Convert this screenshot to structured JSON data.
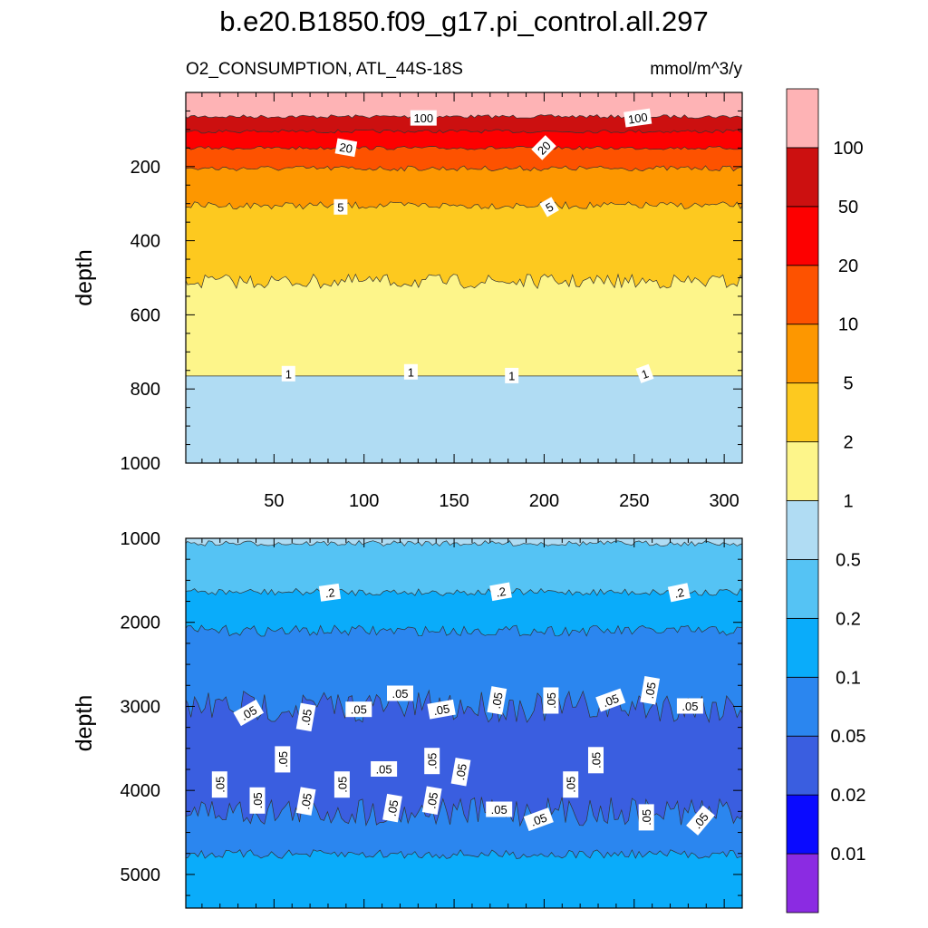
{
  "chart_data": {
    "type": "contour",
    "title": "b.e20.B1850.f09_g17.pi_control.all.297",
    "variable_label": "O2_CONSUMPTION, ATL_44S-18S",
    "units_label": "mmol/m^3/y",
    "x_range": [
      1,
      310
    ],
    "x_ticks": [
      50,
      100,
      150,
      200,
      250,
      300
    ],
    "colorbar": {
      "levels": [
        0.01,
        0.02,
        0.05,
        0.1,
        0.2,
        0.5,
        1,
        2,
        5,
        10,
        20,
        50,
        100
      ],
      "level_labels": [
        "0.01",
        "0.02",
        "0.05",
        "0.1",
        "0.2",
        "0.5",
        "1",
        "2",
        "5",
        "10",
        "20",
        "50",
        "100"
      ],
      "colors": [
        "#8b2be2",
        "#0a0aff",
        "#3a5ee0",
        "#2b86ef",
        "#0aacfa",
        "#55c3f4",
        "#b0dcf3",
        "#fdf58a",
        "#fdc91f",
        "#fd9700",
        "#fd5200",
        "#fd0000",
        "#cc1010",
        "#feb3b5"
      ]
    },
    "panels": [
      {
        "ylabel": "depth",
        "ylim": [
          1000,
          0
        ],
        "y_ticks": [
          200,
          400,
          600,
          800,
          1000
        ],
        "show_x_ticklabels": true,
        "bands": [
          {
            "from": 0,
            "to": 65,
            "color": "#feb3b5"
          },
          {
            "from": 65,
            "to": 105,
            "color": "#cc1010"
          },
          {
            "from": 105,
            "to": 150,
            "color": "#fd0000"
          },
          {
            "from": 150,
            "to": 205,
            "color": "#fd5200"
          },
          {
            "from": 205,
            "to": 305,
            "color": "#fd9700"
          },
          {
            "from": 305,
            "to": 510,
            "color": "#fdc91f"
          },
          {
            "from": 510,
            "to": 765,
            "color": "#fdf58a"
          },
          {
            "from": 765,
            "to": 1000,
            "color": "#b0dcf3"
          }
        ],
        "contour_labels": [
          {
            "text": "100",
            "x": 133,
            "y": 70
          },
          {
            "text": "100",
            "x": 252,
            "y": 70,
            "rot": -8
          },
          {
            "text": "20",
            "x": 90,
            "y": 150,
            "rot": 10
          },
          {
            "text": "20",
            "x": 200,
            "y": 150,
            "rot": -45
          },
          {
            "text": "5",
            "x": 87,
            "y": 310
          },
          {
            "text": "5",
            "x": 203,
            "y": 310,
            "rot": -30
          },
          {
            "text": "1",
            "x": 58,
            "y": 760
          },
          {
            "text": "1",
            "x": 126,
            "y": 755
          },
          {
            "text": "1",
            "x": 182,
            "y": 765
          },
          {
            "text": "1",
            "x": 256,
            "y": 760,
            "rot": -20
          }
        ]
      },
      {
        "ylabel": "depth",
        "ylim": [
          5400,
          1000
        ],
        "y_ticks": [
          1000,
          2000,
          3000,
          4000,
          5000
        ],
        "show_x_ticklabels": false,
        "bands": [
          {
            "from": 1000,
            "to": 1060,
            "color": "#b0dcf3"
          },
          {
            "from": 1060,
            "to": 1640,
            "color": "#55c3f4"
          },
          {
            "from": 1640,
            "to": 2100,
            "color": "#0aacfa"
          },
          {
            "from": 2100,
            "to": 3000,
            "color": "#2b86ef"
          },
          {
            "from": 3000,
            "to": 4250,
            "color": "#3a5ee0"
          },
          {
            "from": 4250,
            "to": 4760,
            "color": "#2b86ef"
          },
          {
            "from": 4760,
            "to": 5400,
            "color": "#0aacfa"
          }
        ],
        "contour_labels": [
          {
            "text": ".2",
            "x": 81,
            "y": 1650,
            "rot": -8
          },
          {
            "text": ".2",
            "x": 176,
            "y": 1640,
            "rot": -10
          },
          {
            "text": ".2",
            "x": 275,
            "y": 1650,
            "rot": -12
          },
          {
            "text": ".05",
            "x": 36,
            "y": 3080,
            "rot": -30
          },
          {
            "text": ".05",
            "x": 68,
            "y": 3130,
            "rot": -80
          },
          {
            "text": ".05",
            "x": 97,
            "y": 3040
          },
          {
            "text": ".05",
            "x": 120,
            "y": 2850
          },
          {
            "text": ".05",
            "x": 143,
            "y": 3040,
            "rot": -10
          },
          {
            "text": ".05",
            "x": 174,
            "y": 2930,
            "rot": -80
          },
          {
            "text": ".05",
            "x": 204,
            "y": 2930,
            "rot": -90
          },
          {
            "text": ".05",
            "x": 237,
            "y": 2930,
            "rot": -20
          },
          {
            "text": ".05",
            "x": 259,
            "y": 2810,
            "rot": -80
          },
          {
            "text": ".05",
            "x": 281,
            "y": 3000
          },
          {
            "text": ".05",
            "x": 55,
            "y": 3630,
            "rot": -90
          },
          {
            "text": ".05",
            "x": 20,
            "y": 3930,
            "rot": -90
          },
          {
            "text": ".05",
            "x": 41,
            "y": 4120,
            "rot": -90
          },
          {
            "text": ".05",
            "x": 68,
            "y": 4130,
            "rot": -80
          },
          {
            "text": ".05",
            "x": 88,
            "y": 3930,
            "rot": -90
          },
          {
            "text": ".05",
            "x": 111,
            "y": 3750
          },
          {
            "text": ".05",
            "x": 138,
            "y": 3650,
            "rot": -90
          },
          {
            "text": ".05",
            "x": 154,
            "y": 3780,
            "rot": -80
          },
          {
            "text": ".05",
            "x": 116,
            "y": 4210,
            "rot": -80
          },
          {
            "text": ".05",
            "x": 138,
            "y": 4120,
            "rot": -80
          },
          {
            "text": ".05",
            "x": 175,
            "y": 4230
          },
          {
            "text": ".05",
            "x": 197,
            "y": 4350,
            "rot": -20
          },
          {
            "text": ".05",
            "x": 215,
            "y": 3930,
            "rot": -90
          },
          {
            "text": ".05",
            "x": 229,
            "y": 3640,
            "rot": -90
          },
          {
            "text": ".05",
            "x": 257,
            "y": 4320,
            "rot": -90
          },
          {
            "text": ".05",
            "x": 287,
            "y": 4360,
            "rot": -50
          }
        ]
      }
    ]
  }
}
